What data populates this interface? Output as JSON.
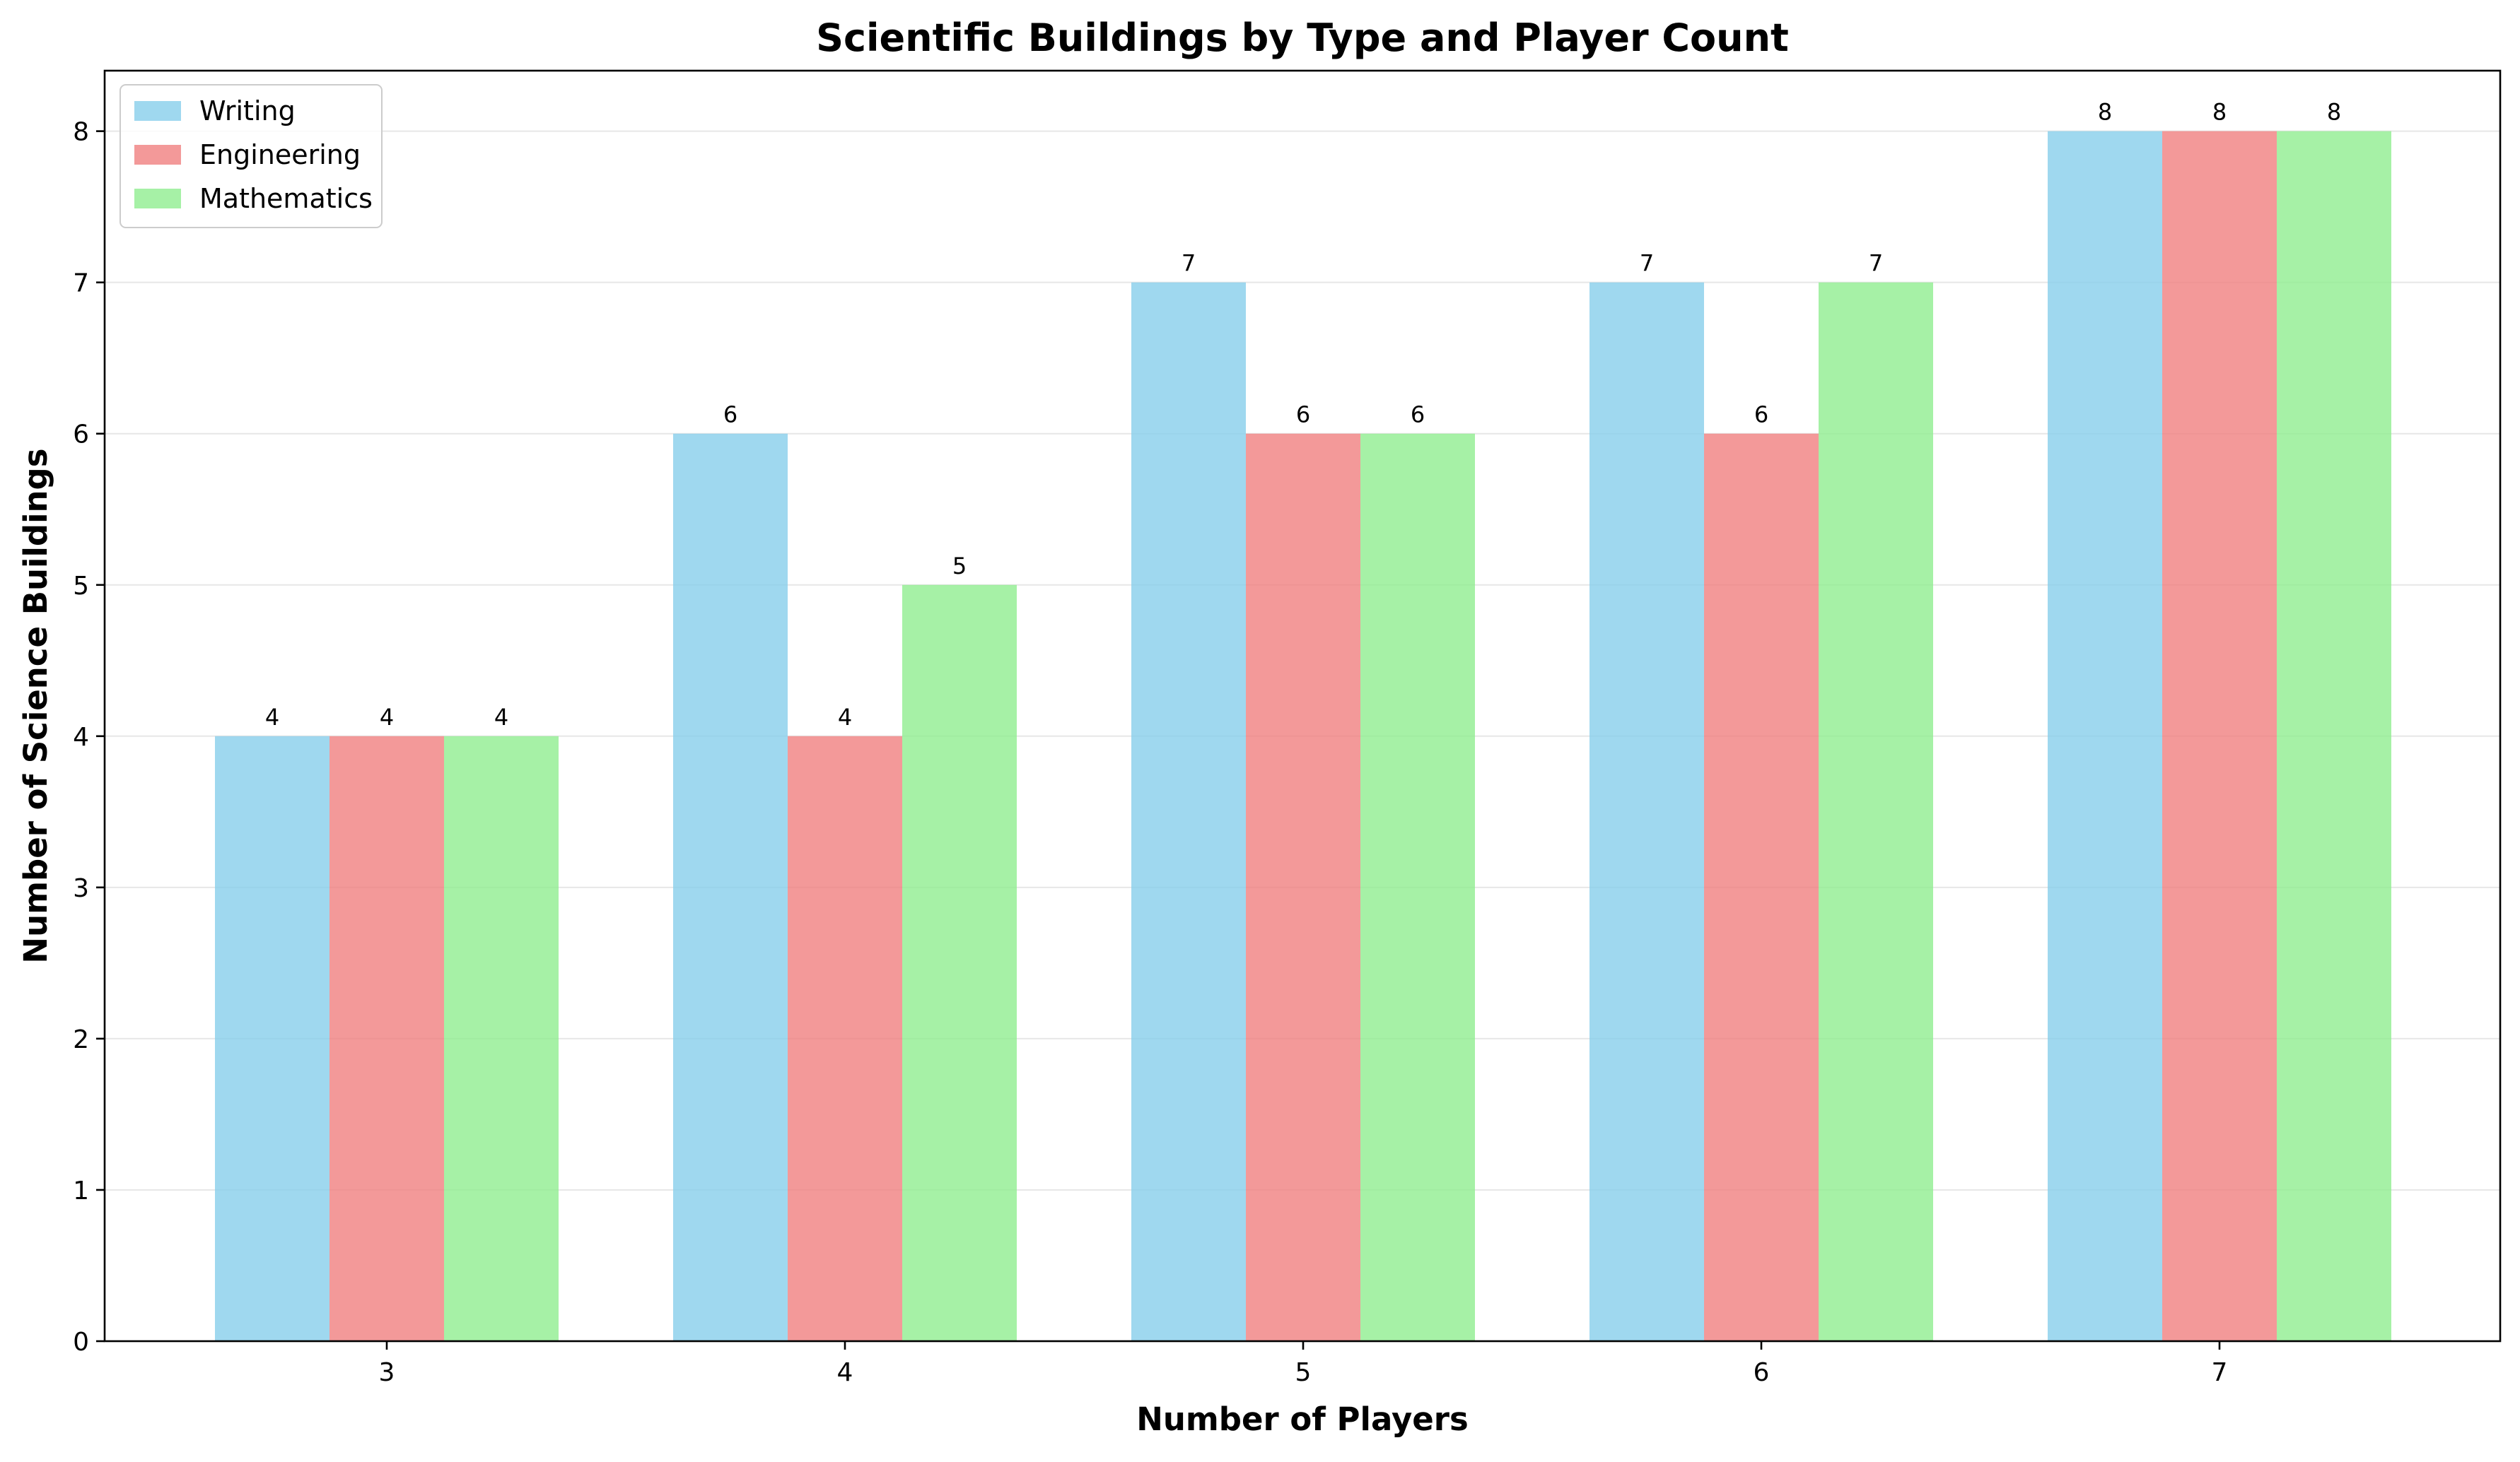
{
  "chart_data": {
    "type": "bar",
    "title": "Scientific Buildings by Type and Player Count",
    "xlabel": "Number of Players",
    "ylabel": "Number of Science Buildings",
    "categories": [
      "3",
      "4",
      "5",
      "6",
      "7"
    ],
    "series": [
      {
        "name": "Writing",
        "values": [
          4,
          6,
          7,
          7,
          8
        ],
        "color": "#87ceeb"
      },
      {
        "name": "Engineering",
        "values": [
          4,
          4,
          6,
          6,
          8
        ],
        "color": "#f08080"
      },
      {
        "name": "Mathematics",
        "values": [
          4,
          5,
          6,
          7,
          8
        ],
        "color": "#90ee90"
      }
    ],
    "ylim": [
      0,
      8.4
    ],
    "yticks": [
      0,
      1,
      2,
      3,
      4,
      5,
      6,
      7,
      8
    ],
    "grid": "horizontal",
    "legend_position": "top-left",
    "bar_data_labels": true
  }
}
